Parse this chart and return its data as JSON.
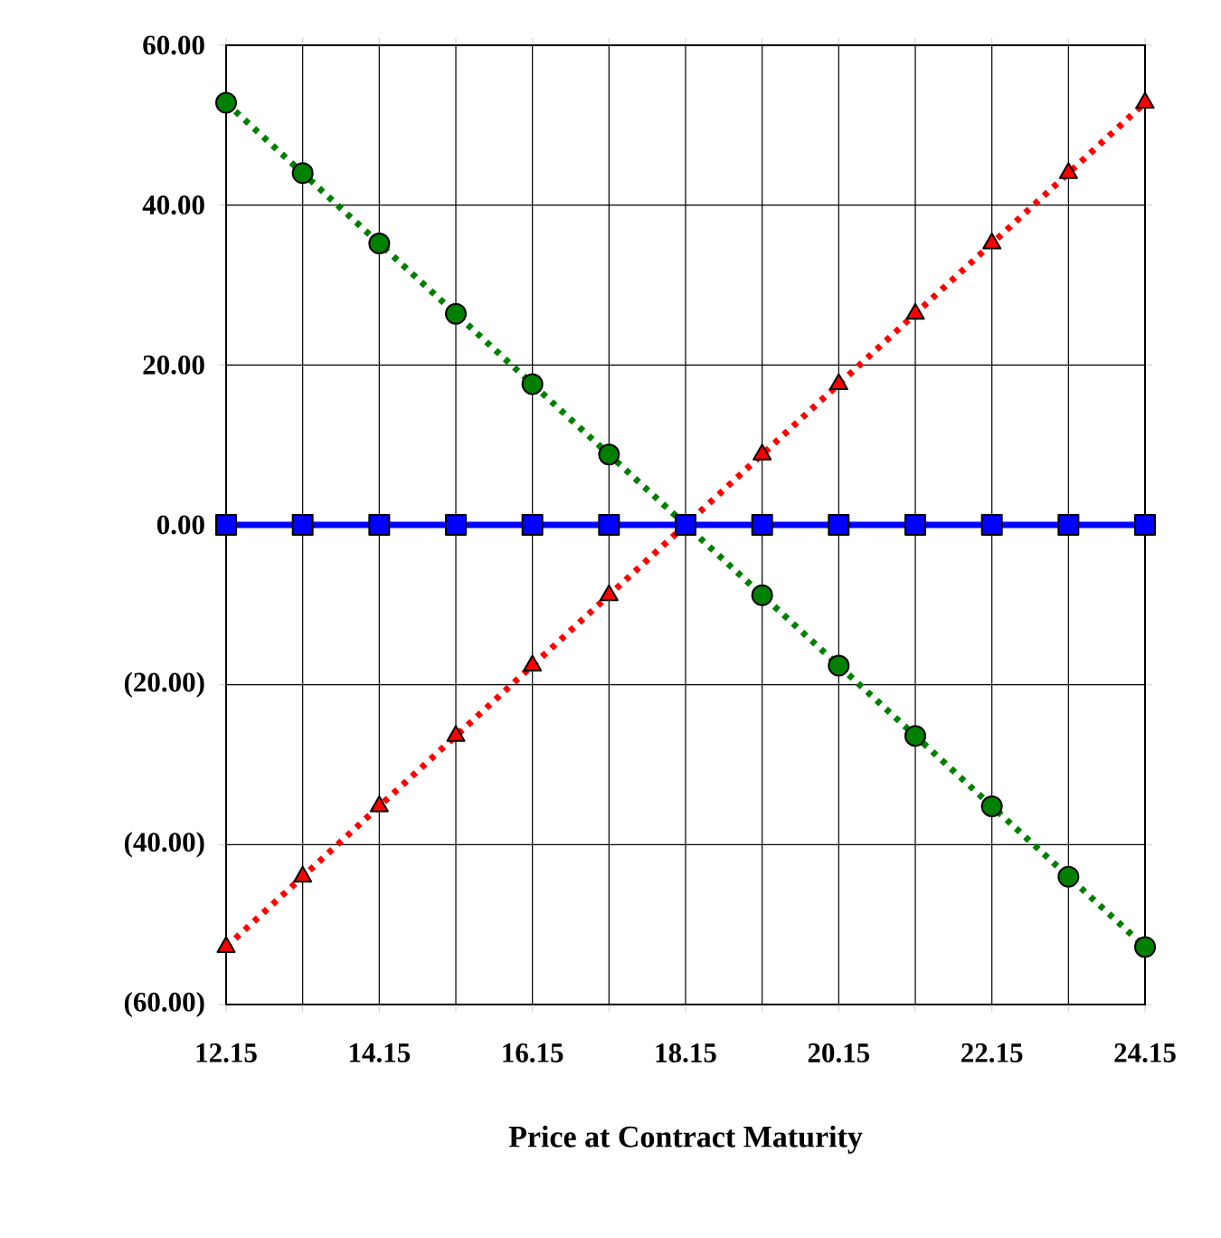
{
  "chart_data": {
    "type": "line",
    "xlabel": "Price at Contract Maturity",
    "x": [
      12.15,
      13.15,
      14.15,
      15.15,
      16.15,
      17.15,
      18.15,
      19.15,
      20.15,
      21.15,
      22.15,
      23.15,
      24.15
    ],
    "series": [
      {
        "color": "#008000",
        "marker": "circle",
        "line_style": "dotted",
        "values": [
          52.8,
          44,
          35.2,
          26.4,
          17.6,
          8.8,
          0,
          -8.8,
          -17.6,
          -26.4,
          -35.2,
          -44,
          -52.8
        ]
      },
      {
        "color": "#ff0000",
        "marker": "triangle",
        "line_style": "dotted",
        "values": [
          -52.8,
          -44,
          -35.2,
          -26.4,
          -17.6,
          -8.8,
          0,
          8.8,
          17.6,
          26.4,
          35.2,
          44,
          52.8
        ]
      },
      {
        "color": "#0000ff",
        "marker": "square",
        "line_style": "solid",
        "values": [
          0,
          0,
          0,
          0,
          0,
          0,
          0,
          0,
          0,
          0,
          0,
          0,
          0
        ]
      }
    ],
    "xlim": [
      12.15,
      24.15
    ],
    "xticks": [
      12.15,
      {
        "value": 13.15,
        "label": null
      },
      14.15,
      {
        "value": 15.15,
        "label": null
      },
      16.15,
      {
        "value": 17.15,
        "label": null
      },
      18.15,
      {
        "value": 19.15,
        "label": null
      },
      20.15,
      {
        "value": 21.15,
        "label": null
      },
      22.15,
      {
        "value": 23.15,
        "label": null
      },
      24.15
    ],
    "ylim": [
      -60,
      60
    ],
    "yticks": [
      {
        "value": -60,
        "label": "(60.00)"
      },
      {
        "value": -40,
        "label": "(40.00)"
      },
      {
        "value": -20,
        "label": "(20.00)"
      },
      {
        "value": 0,
        "label": "0.00"
      },
      {
        "value": 20,
        "label": "20.00"
      },
      {
        "value": 40,
        "label": "40.00"
      },
      {
        "value": 60,
        "label": "60.00"
      }
    ],
    "grid": true
  }
}
